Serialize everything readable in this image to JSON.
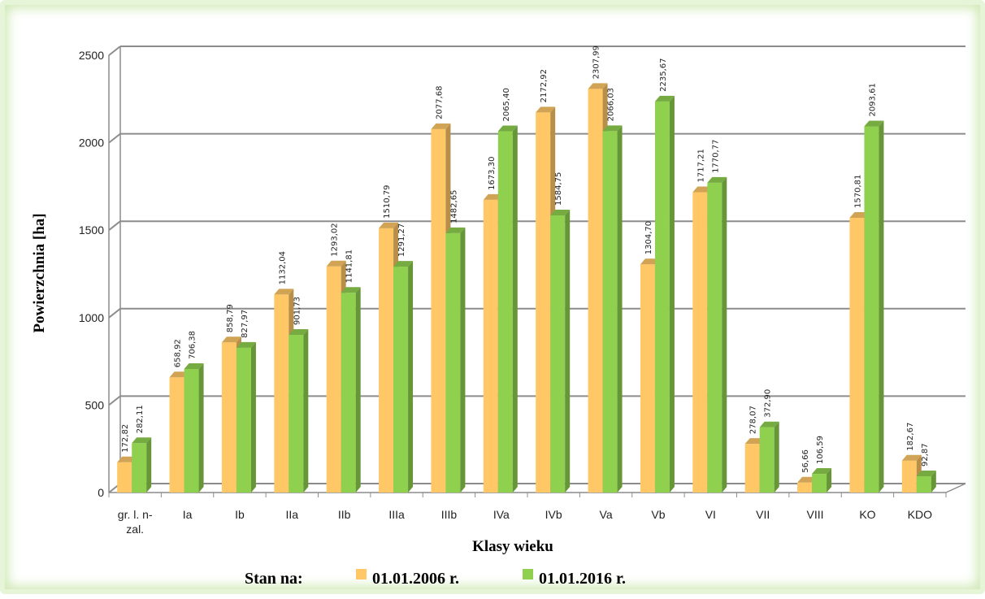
{
  "chart_data": {
    "type": "bar",
    "categories": [
      "gr. l. n-zal.",
      "Ia",
      "Ib",
      "IIa",
      "IIb",
      "IIIa",
      "IIIb",
      "IVa",
      "IVb",
      "Va",
      "Vb",
      "VI",
      "VII",
      "VIII",
      "KO",
      "KDO"
    ],
    "series": [
      {
        "name": "01.01.2006 r.",
        "color": "#ffc766",
        "values": [
          172.82,
          658.92,
          858.79,
          1132.04,
          1293.02,
          1510.79,
          2077.68,
          1673.3,
          2172.92,
          2307.99,
          1304.7,
          1717.21,
          278.07,
          56.66,
          1570.81,
          182.67
        ],
        "labels": [
          "172,82",
          "658,92",
          "858,79",
          "1132,04",
          "1293,02",
          "1510,79",
          "2077,68",
          "1673,30",
          "2172,92",
          "2307,99",
          "1304,70",
          "1717,21",
          "278,07",
          "56,66",
          "1570,81",
          "182,67"
        ]
      },
      {
        "name": "01.01.2016 r.",
        "color": "#8fd14f",
        "values": [
          282.11,
          706.38,
          827.97,
          901.73,
          1141.81,
          1291.27,
          1482.65,
          2065.4,
          1584.75,
          2066.03,
          2235.67,
          1770.77,
          372.9,
          106.59,
          2093.61,
          92.87
        ],
        "labels": [
          "282,11",
          "706,38",
          "827,97",
          "901,73",
          "1141,81",
          "1291,27",
          "1482,65",
          "2065,40",
          "1584,75",
          "2066,03",
          "2235,67",
          "1770,77",
          "372,90",
          "106,59",
          "2093,61",
          "92,87"
        ]
      }
    ],
    "xlabel": "Klasy wieku",
    "ylabel": "Powierzchnia [ha]",
    "ylim": [
      0,
      2500
    ],
    "yticks": [
      "0",
      "500",
      "1000",
      "1500",
      "2000",
      "2500"
    ],
    "grid": true,
    "legend_title": "Stan na:",
    "legend_position": "bottom"
  }
}
